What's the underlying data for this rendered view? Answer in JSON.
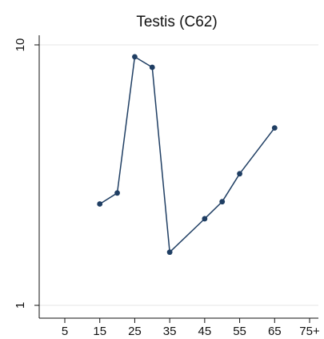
{
  "chart_data": {
    "type": "line",
    "title": "Testis (C62)",
    "xlabel": "",
    "ylabel": "",
    "y_scale": "log",
    "ylim": [
      1,
      10
    ],
    "xlim": [
      0,
      80
    ],
    "x_ticks": [
      {
        "value": 5,
        "label": "5"
      },
      {
        "value": 15,
        "label": "15"
      },
      {
        "value": 25,
        "label": "25"
      },
      {
        "value": 35,
        "label": "35"
      },
      {
        "value": 45,
        "label": "45"
      },
      {
        "value": 55,
        "label": "55"
      },
      {
        "value": 65,
        "label": "65"
      },
      {
        "value": 75,
        "label": "75+"
      }
    ],
    "y_ticks": [
      {
        "value": 1,
        "label": "1"
      },
      {
        "value": 10,
        "label": "10"
      }
    ],
    "grid": true,
    "legend": "none",
    "series": [
      {
        "color": "#1f3e63",
        "x": [
          15,
          20,
          25,
          30,
          35,
          45,
          50,
          55,
          65
        ],
        "y": [
          2.45,
          2.7,
          9.0,
          8.2,
          1.6,
          2.15,
          2.5,
          3.2,
          4.8
        ]
      }
    ]
  }
}
